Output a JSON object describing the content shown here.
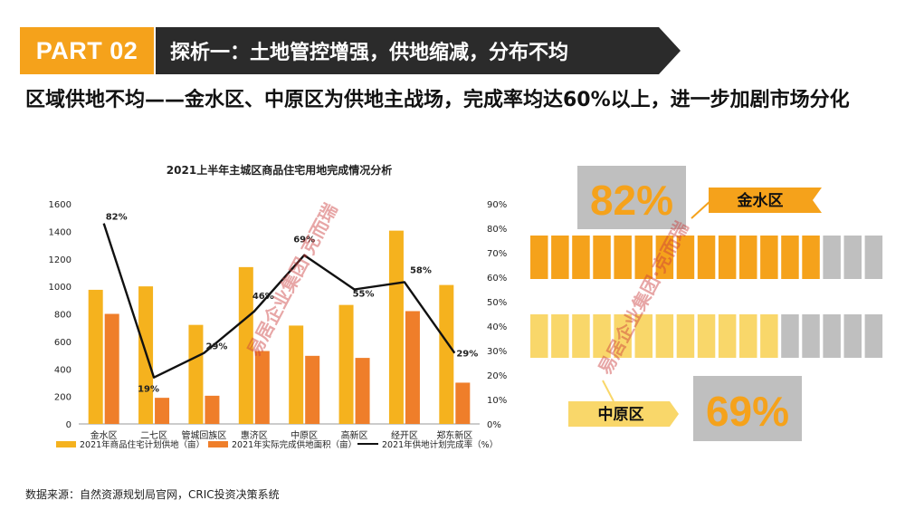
{
  "header": {
    "part_label": "PART 02",
    "title": "探析一：土地管控增强，供地缩减，分布不均"
  },
  "subtitle": "区域供地不均——金水区、中原区为供地主战场，完成率均达60%以上，进一步加剧市场分化",
  "colors": {
    "accent_orange": "#f5a21b",
    "bar_yellow": "#f5b21e",
    "bar_orange": "#ef7e2a",
    "dark_header": "#2b2b2b",
    "gray_block": "#bfbfbf",
    "light_yellow": "#f9d76a"
  },
  "chart_data": {
    "type": "bar",
    "title": "2021上半年主城区商品住宅用地完成情况分析",
    "categories": [
      "金水区",
      "二七区",
      "管城回族区",
      "惠济区",
      "中原区",
      "高新区",
      "经开区",
      "郑东新区"
    ],
    "series": [
      {
        "name": "2021年商品住宅计划供地（亩）",
        "kind": "bar",
        "axis": "left",
        "values": [
          975,
          1000,
          720,
          1140,
          715,
          865,
          1405,
          1010
        ]
      },
      {
        "name": "2021年实际完成供地面积（亩）",
        "kind": "bar",
        "axis": "left",
        "values": [
          800,
          190,
          205,
          530,
          495,
          480,
          820,
          300
        ]
      },
      {
        "name": "2021年供地计划完成率（%）",
        "kind": "line",
        "axis": "right",
        "values": [
          82,
          19,
          29,
          46,
          69,
          55,
          58,
          29
        ]
      }
    ],
    "line_labels": [
      "82%",
      "19%",
      "29%",
      "46%",
      "69%",
      "55%",
      "58%",
      "29%"
    ],
    "y_left": {
      "min": 0,
      "max": 1600,
      "ticks": [
        0,
        200,
        400,
        600,
        800,
        1000,
        1200,
        1400,
        1600
      ]
    },
    "y_right": {
      "min": 0,
      "max": 90,
      "ticks": [
        "0%",
        "10%",
        "20%",
        "30%",
        "40%",
        "50%",
        "60%",
        "70%",
        "80%",
        "90%"
      ]
    },
    "legend_position": "bottom"
  },
  "infographic": {
    "district_a": {
      "name": "金水区",
      "rate": "82%",
      "rate_value": 82
    },
    "district_b": {
      "name": "中原区",
      "rate": "69%",
      "rate_value": 69
    },
    "total_blocks": 17
  },
  "watermark": "易居企业集团·克而瑞",
  "source": "数据来源：自然资源规划局官网，CRIC投资决策系统"
}
